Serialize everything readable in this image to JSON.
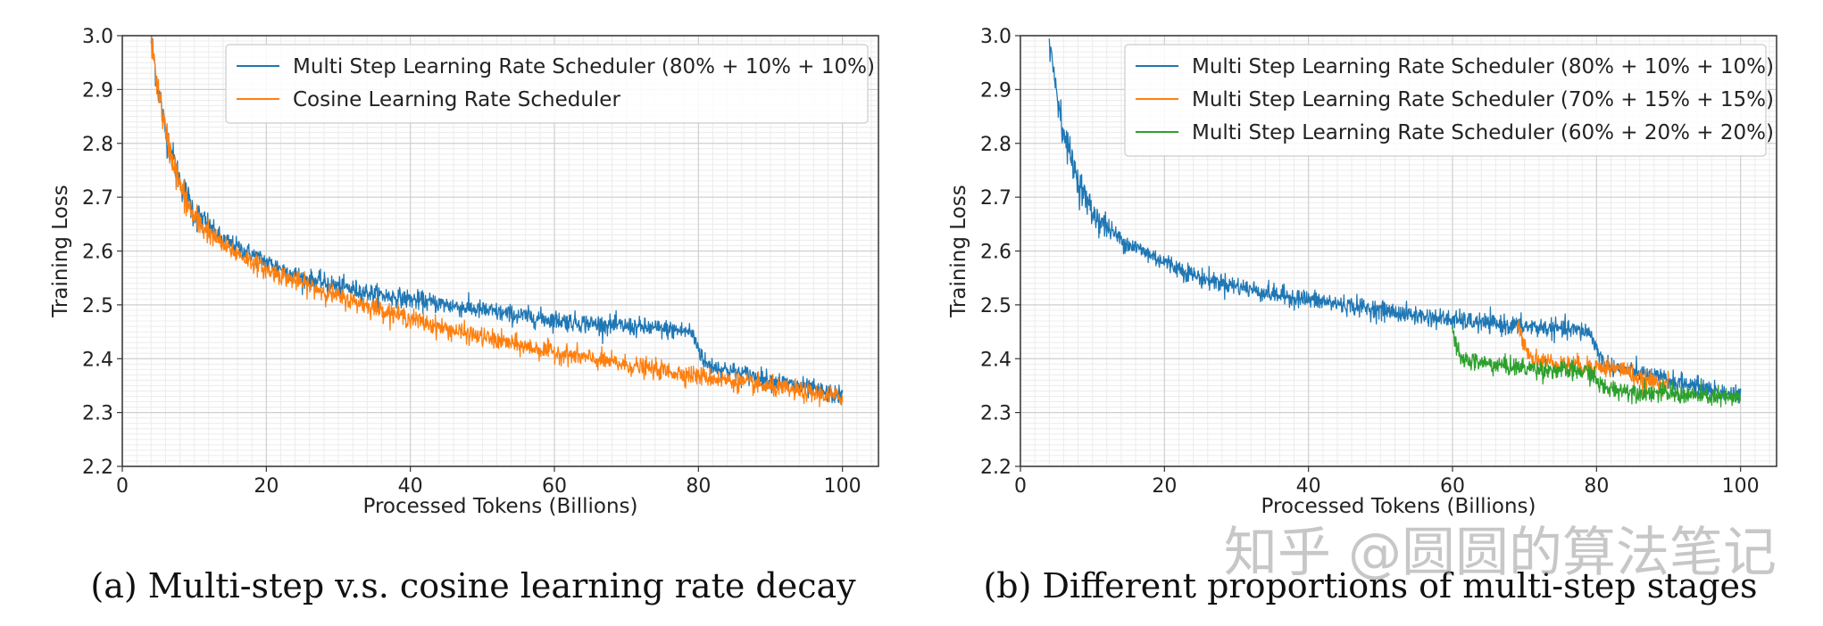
{
  "chart_data": [
    {
      "type": "line",
      "xlabel": "Processed Tokens (Billions)",
      "ylabel": "Training Loss",
      "xlim": [
        0,
        105
      ],
      "ylim": [
        2.2,
        3.0
      ],
      "xticks": [
        0,
        20,
        40,
        60,
        80,
        100
      ],
      "yticks": [
        2.2,
        2.3,
        2.4,
        2.5,
        2.6,
        2.7,
        2.8,
        2.9,
        3.0
      ],
      "grid": true,
      "legend": "top-right",
      "caption": "(a) Multi-step v.s. cosine learning rate decay",
      "series": [
        {
          "name": "Multi Step Learning Rate Scheduler (80% + 10% + 10%)",
          "color": "#1f77b4",
          "x": [
            4,
            5,
            6,
            8,
            10,
            14,
            20,
            25,
            30,
            35,
            40,
            45,
            50,
            55,
            60,
            65,
            70,
            75,
            79,
            80,
            81,
            85,
            90,
            95,
            100
          ],
          "y": [
            2.99,
            2.9,
            2.82,
            2.73,
            2.67,
            2.62,
            2.58,
            2.55,
            2.535,
            2.52,
            2.51,
            2.5,
            2.49,
            2.48,
            2.472,
            2.465,
            2.46,
            2.455,
            2.45,
            2.42,
            2.39,
            2.375,
            2.36,
            2.345,
            2.33
          ]
        },
        {
          "name": "Cosine Learning Rate Scheduler",
          "color": "#ff7f0e",
          "x": [
            4,
            5,
            6,
            8,
            10,
            14,
            20,
            25,
            30,
            35,
            40,
            45,
            50,
            55,
            60,
            65,
            70,
            75,
            80,
            85,
            90,
            95,
            100
          ],
          "y": [
            2.99,
            2.9,
            2.82,
            2.72,
            2.66,
            2.61,
            2.565,
            2.54,
            2.515,
            2.495,
            2.475,
            2.455,
            2.44,
            2.425,
            2.412,
            2.4,
            2.388,
            2.378,
            2.368,
            2.358,
            2.347,
            2.337,
            2.328
          ]
        }
      ]
    },
    {
      "type": "line",
      "xlabel": "Processed Tokens (Billions)",
      "ylabel": "Training Loss",
      "xlim": [
        0,
        105
      ],
      "ylim": [
        2.2,
        3.0
      ],
      "xticks": [
        0,
        20,
        40,
        60,
        80,
        100
      ],
      "yticks": [
        2.2,
        2.3,
        2.4,
        2.5,
        2.6,
        2.7,
        2.8,
        2.9,
        3.0
      ],
      "grid": true,
      "legend": "top-right",
      "caption": "(b) Different proportions of multi-step stages",
      "series": [
        {
          "name": "Multi Step Learning Rate Scheduler (80% + 10% + 10%)",
          "color": "#1f77b4",
          "x": [
            4,
            5,
            6,
            8,
            10,
            14,
            20,
            25,
            30,
            35,
            40,
            45,
            50,
            55,
            60,
            65,
            70,
            75,
            79,
            80,
            81,
            85,
            90,
            95,
            100
          ],
          "y": [
            2.99,
            2.9,
            2.82,
            2.73,
            2.67,
            2.62,
            2.58,
            2.55,
            2.535,
            2.52,
            2.51,
            2.5,
            2.49,
            2.48,
            2.472,
            2.465,
            2.46,
            2.455,
            2.45,
            2.42,
            2.39,
            2.375,
            2.36,
            2.345,
            2.33
          ]
        },
        {
          "name": "Multi Step Learning Rate Scheduler (70% + 15% + 15%)",
          "color": "#ff7f0e",
          "x": [
            69,
            70,
            71,
            75,
            80,
            84,
            85,
            86,
            90
          ],
          "y": [
            2.46,
            2.43,
            2.4,
            2.39,
            2.385,
            2.38,
            2.37,
            2.36,
            2.355
          ]
        },
        {
          "name": "Multi Step Learning Rate Scheduler (60% + 20% + 20%)",
          "color": "#2ca02c",
          "x": [
            60,
            61,
            65,
            70,
            75,
            79,
            80,
            81,
            85,
            90,
            95,
            100
          ],
          "y": [
            2.45,
            2.4,
            2.39,
            2.383,
            2.378,
            2.375,
            2.36,
            2.345,
            2.34,
            2.335,
            2.33,
            2.325
          ]
        }
      ]
    }
  ],
  "watermark": "知乎 @圆圆的算法笔记"
}
